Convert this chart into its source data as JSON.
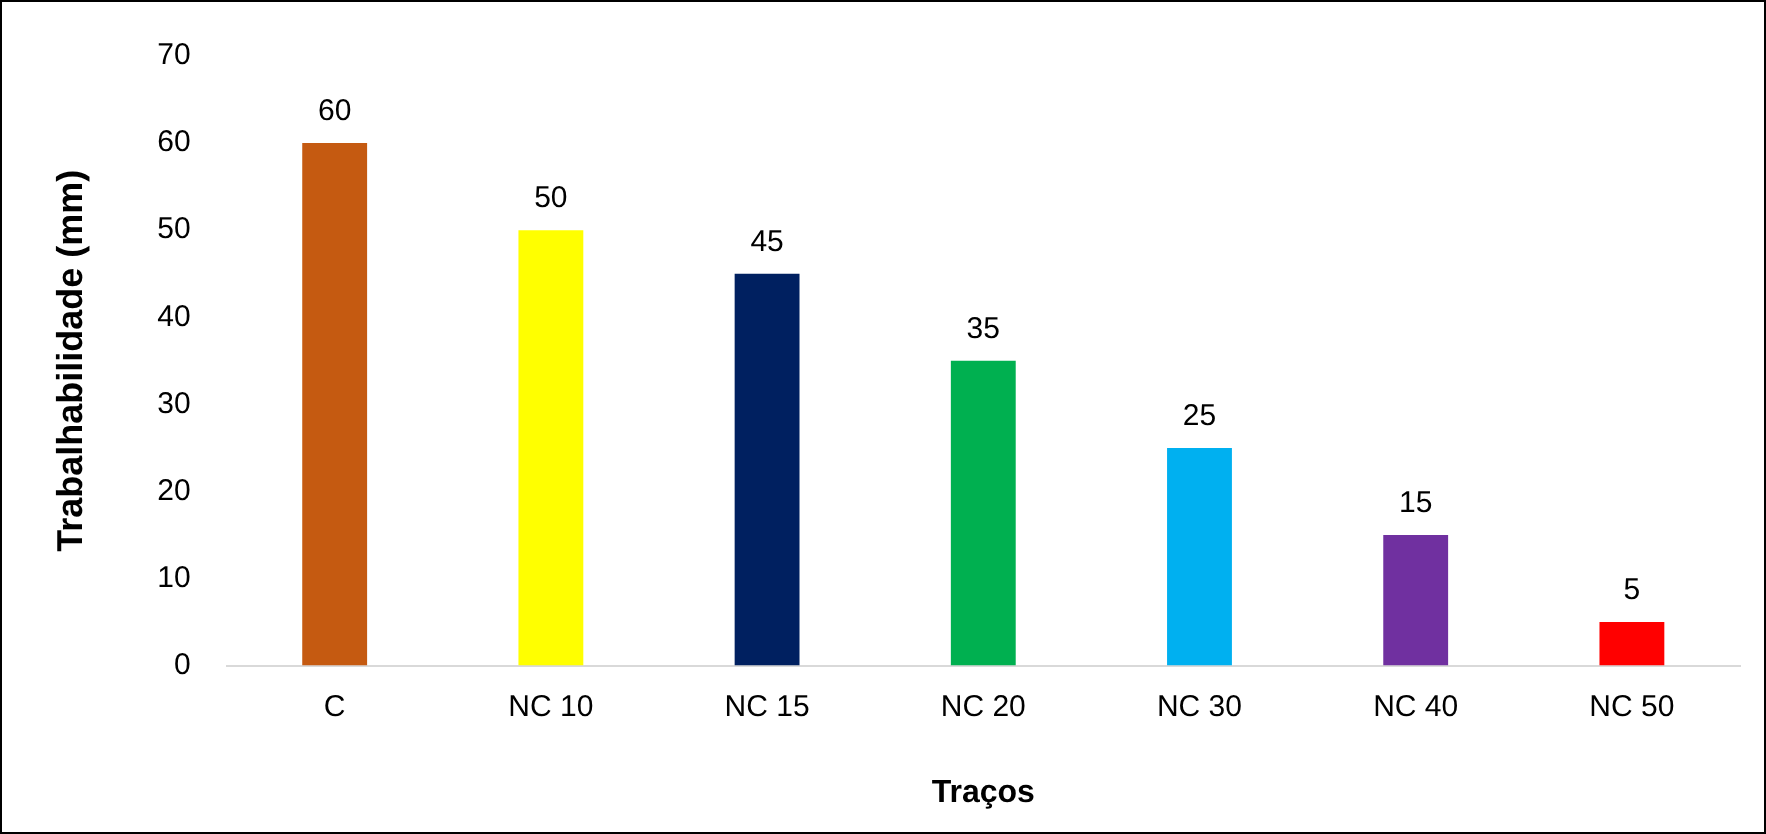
{
  "chart_data": {
    "type": "bar",
    "xlabel": "Traços",
    "ylabel": "Trabalhabilidade (mm)",
    "categories": [
      "C",
      "NC 10",
      "NC 15",
      "NC 20",
      "NC 30",
      "NC 40",
      "NC 50"
    ],
    "values": [
      60,
      50,
      45,
      35,
      25,
      15,
      5
    ],
    "colors": [
      "#c55a11",
      "#ffff00",
      "#002060",
      "#00b050",
      "#00b0f0",
      "#7030a0",
      "#ff0000"
    ],
    "ylim": [
      0,
      70
    ],
    "yticks": [
      0,
      10,
      20,
      30,
      40,
      50,
      60,
      70
    ],
    "grid": false,
    "legend": false,
    "data_labels": true
  }
}
